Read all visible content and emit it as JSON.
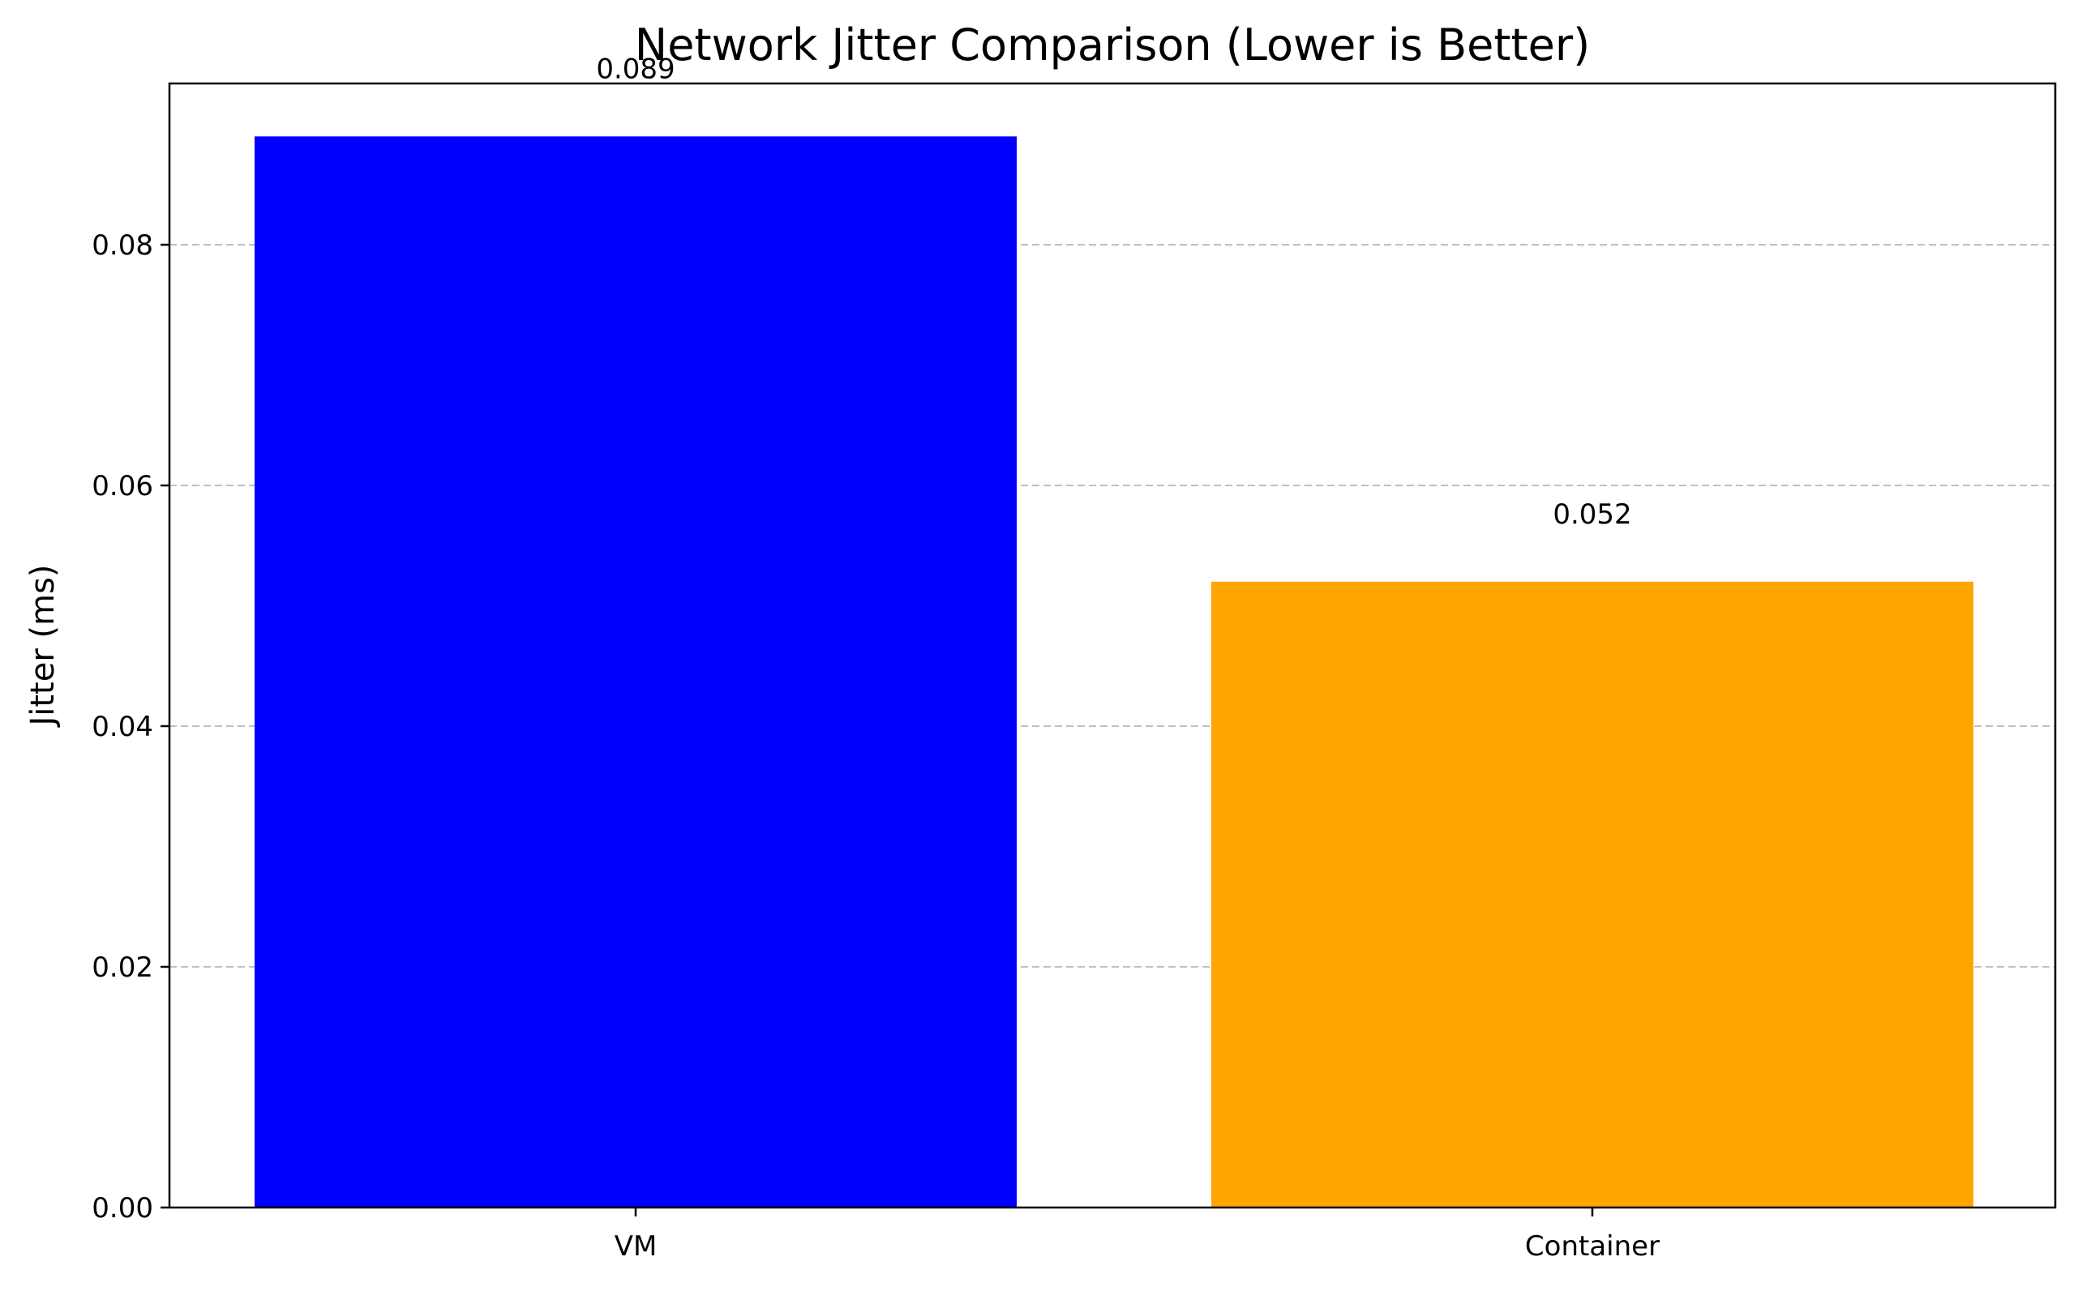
{
  "chart_data": {
    "type": "bar",
    "title": "Network Jitter Comparison (Lower is Better)",
    "xlabel": "",
    "ylabel": "Jitter (ms)",
    "categories": [
      "VM",
      "Container"
    ],
    "values": [
      0.089,
      0.052
    ],
    "value_labels": [
      "0.089",
      "0.052"
    ],
    "colors": [
      "#0000ff",
      "#ffa500"
    ],
    "ylim": [
      0,
      0.0934
    ],
    "yticks": [
      0.0,
      0.02,
      0.04,
      0.06,
      0.08
    ],
    "ytick_labels": [
      "0.00",
      "0.02",
      "0.04",
      "0.06",
      "0.08"
    ],
    "grid": "y-dashed"
  }
}
